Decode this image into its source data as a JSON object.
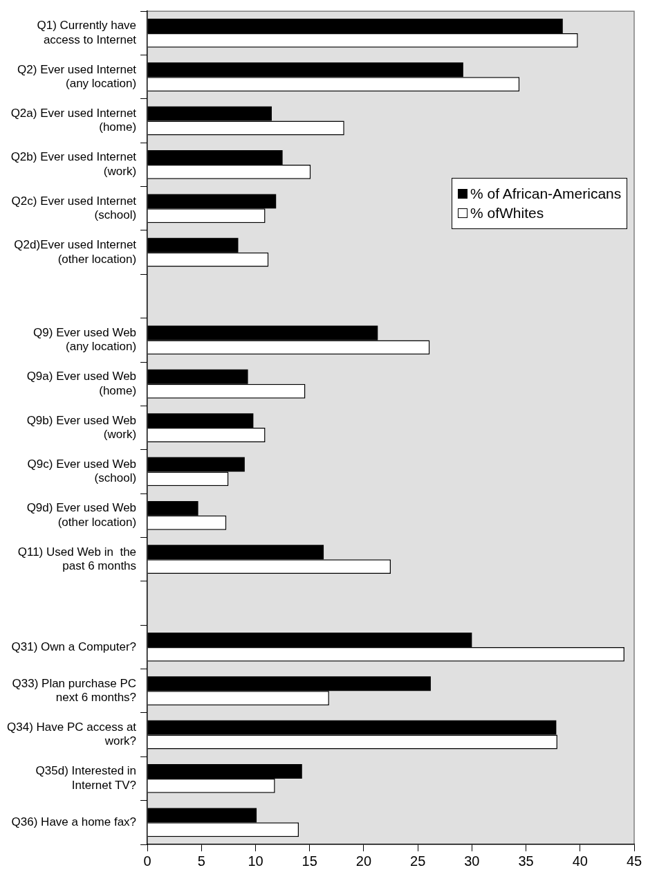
{
  "chart_data": {
    "type": "bar",
    "orientation": "horizontal",
    "categories": [
      "Q1) Currently have\naccess to Internet",
      "Q2) Ever used Internet\n(any location)",
      "Q2a) Ever used Internet\n(home)",
      "Q2b) Ever used Internet\n(work)",
      "Q2c) Ever used Internet\n(school)",
      "Q2d)Ever used Internet\n(other location)",
      null,
      "Q9) Ever used Web\n(any location)",
      "Q9a) Ever used Web\n(home)",
      "Q9b) Ever used Web\n(work)",
      "Q9c) Ever used Web\n(school)",
      "Q9d) Ever used Web\n(other location)",
      "Q11) Used Web in  the\npast 6 months",
      null,
      "Q31) Own a Computer?",
      "Q33) Plan purchase PC\nnext 6 months?",
      "Q34) Have PC access at\nwork?",
      "Q35d) Interested in\nInternet TV?",
      "Q36) Have a home fax?"
    ],
    "series": [
      {
        "name": "% of African-Americans",
        "color": "#000000",
        "values": [
          38.4,
          29.2,
          11.5,
          12.5,
          11.9,
          8.4,
          null,
          21.3,
          9.3,
          9.8,
          9.0,
          4.7,
          16.3,
          null,
          30.0,
          26.2,
          37.8,
          14.3,
          10.1
        ]
      },
      {
        "name": "% ofWhites",
        "color": "#ffffff",
        "values": [
          39.8,
          34.4,
          18.2,
          15.1,
          10.9,
          11.2,
          null,
          26.1,
          14.6,
          10.9,
          7.5,
          7.3,
          22.5,
          null,
          44.1,
          16.8,
          37.9,
          11.8,
          14.0
        ]
      }
    ],
    "xlim": [
      0,
      45
    ],
    "xticks": [
      0,
      5,
      10,
      15,
      20,
      25,
      30,
      35,
      40,
      45
    ],
    "legend": "right"
  }
}
